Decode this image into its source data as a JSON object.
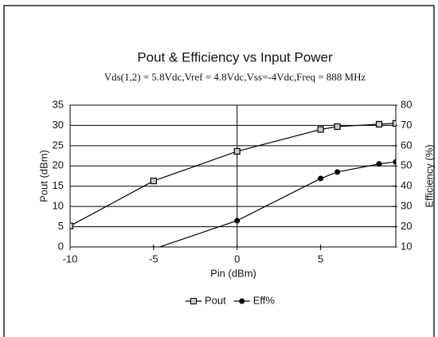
{
  "chart_data": {
    "type": "line",
    "title": "Pout & Efficiency vs Input Power",
    "subtitle": "Vds(1,2) = 5.8Vdc,Vref = 4.8Vdc,Vss=-4Vdc,Freq = 888 MHz",
    "x_label": "Pin (dBm)",
    "y_label": "Pout (dBm)",
    "y2_label": "Efficiency (%)",
    "x": [
      -10,
      -5,
      0,
      5,
      6,
      8.5,
      9.5
    ],
    "series": [
      {
        "name": "Pout",
        "color": "#000000",
        "marker": "square",
        "values": [
          5.2,
          16.3,
          23.6,
          29,
          29.7,
          30.3,
          30.5
        ]
      },
      {
        "name": "Eff%",
        "color": "#000000",
        "marker": "circle",
        "axis": "y2",
        "values": [
          null,
          9,
          23,
          43.8,
          47,
          51,
          52
        ]
      }
    ],
    "xlim": [
      -10,
      9.5
    ],
    "xticks": [
      -10,
      -5,
      0,
      5
    ],
    "ylim": [
      0,
      35
    ],
    "yticks": [
      0,
      5,
      10,
      15,
      20,
      25,
      30,
      35
    ],
    "y2lim": [
      10,
      80
    ],
    "y2ticks": [
      10,
      20,
      30,
      40,
      50,
      60,
      70,
      80
    ],
    "grid": true,
    "x_cross_line": 0,
    "legend": "bottom"
  }
}
